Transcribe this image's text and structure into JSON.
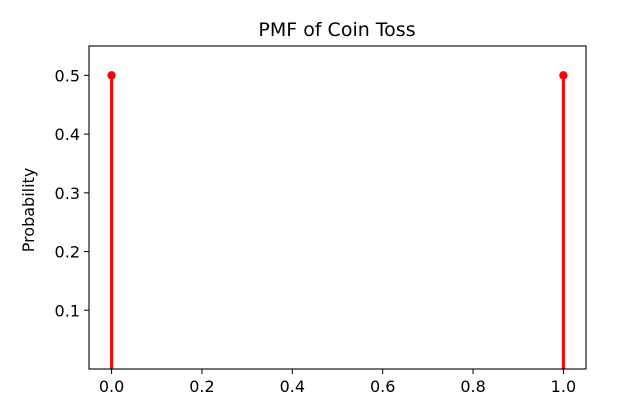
{
  "chart_data": {
    "type": "stem",
    "title": "PMF of Coin Toss",
    "xlabel": "",
    "ylabel": "Probability",
    "x": [
      0.0,
      1.0
    ],
    "y": [
      0.5,
      0.5
    ],
    "xlim": [
      -0.05,
      1.05
    ],
    "ylim": [
      0.0,
      0.55
    ],
    "xticks": [
      "0.0",
      "0.2",
      "0.4",
      "0.6",
      "0.8",
      "1.0"
    ],
    "yticks": [
      "0.1",
      "0.2",
      "0.3",
      "0.4",
      "0.5"
    ],
    "grid": false,
    "color": "#ff0000"
  }
}
